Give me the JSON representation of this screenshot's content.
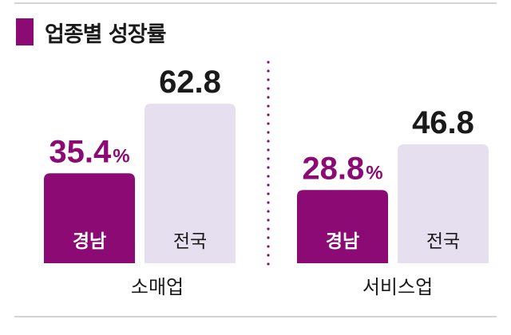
{
  "chart_data": {
    "type": "bar",
    "title": "업종별 성장률",
    "unit": "%",
    "ylim": [
      0,
      70
    ],
    "grid": false,
    "legend": "none",
    "groups": [
      {
        "category": "소매업",
        "bars": [
          {
            "label": "경남",
            "value": 35.4,
            "display": "35.4",
            "show_unit": true,
            "highlight": true
          },
          {
            "label": "전국",
            "value": 62.8,
            "display": "62.8",
            "show_unit": false,
            "highlight": false
          }
        ]
      },
      {
        "category": "서비스업",
        "bars": [
          {
            "label": "경남",
            "value": 28.8,
            "display": "28.8",
            "show_unit": true,
            "highlight": true
          },
          {
            "label": "전국",
            "value": 46.8,
            "display": "46.8",
            "show_unit": false,
            "highlight": false
          }
        ]
      }
    ]
  },
  "colors": {
    "highlight_bar": "#8b0a73",
    "highlight_text": "#8b0a73",
    "base_bar": "#e6dff0",
    "base_value_text": "#1a1a1a",
    "bar_label_on_highlight": "#ffffff",
    "bar_label_on_base": "#1a1a1a",
    "separator": "#8b0a73"
  }
}
